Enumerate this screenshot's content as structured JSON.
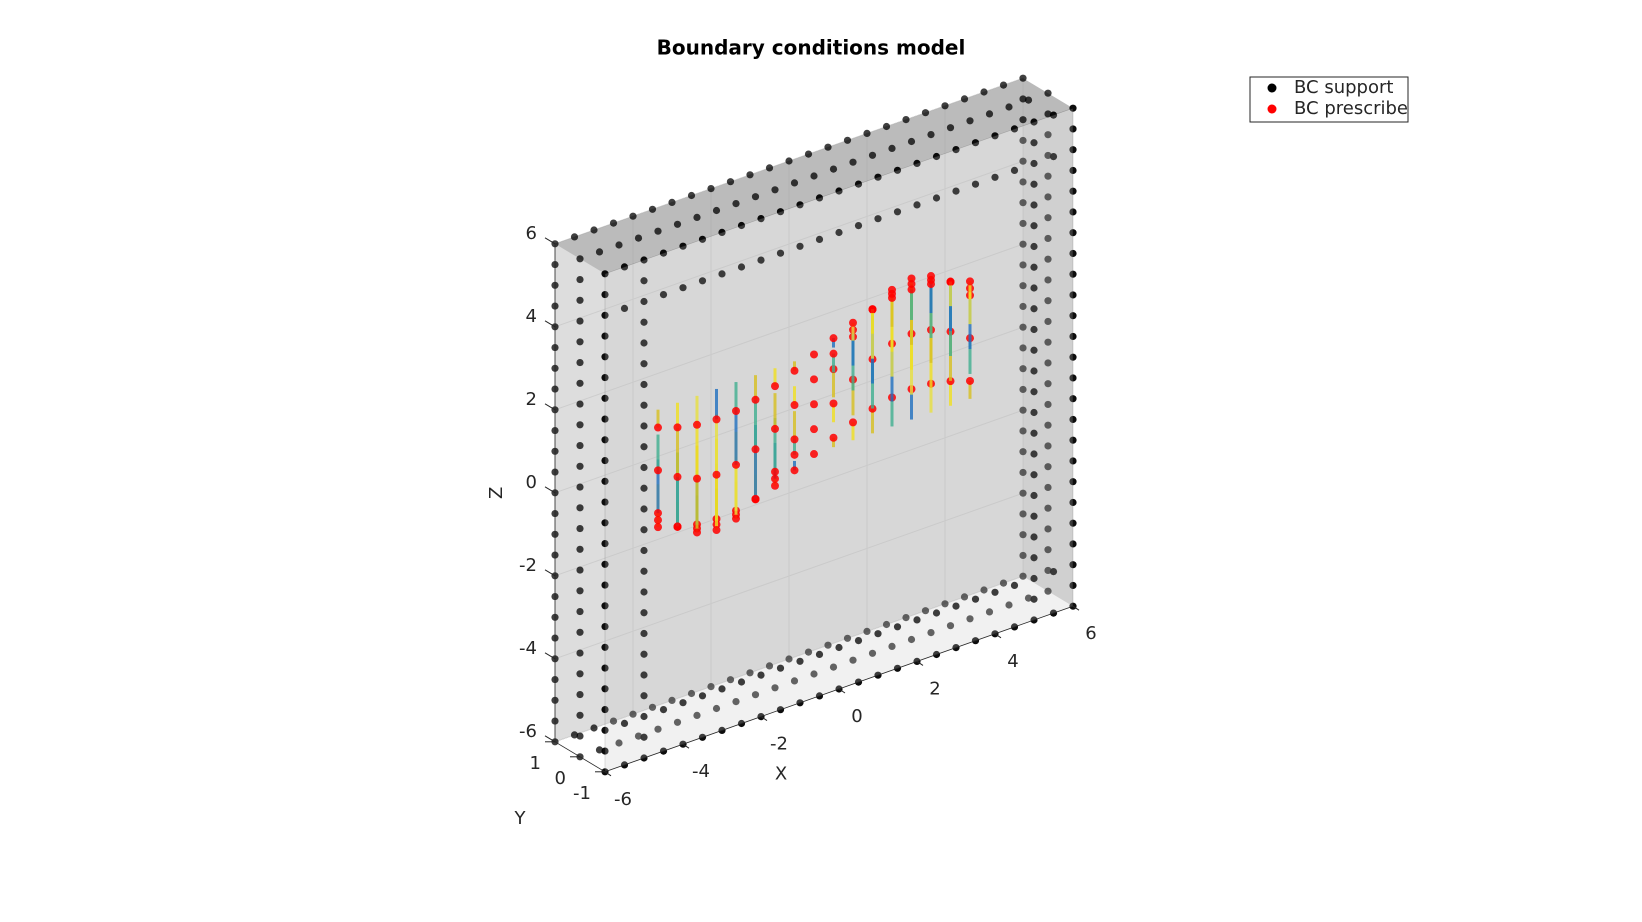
{
  "chart_data": {
    "type": "scatter3",
    "title": "Boundary conditions model",
    "xlabel": "X",
    "ylabel": "Y",
    "zlabel": "Z",
    "xlim": [
      -6,
      6
    ],
    "xticks": [
      -6,
      -4,
      -2,
      0,
      2,
      4,
      6
    ],
    "ylim": [
      -1,
      1
    ],
    "yticks": [
      -1,
      0,
      1
    ],
    "zlim": [
      -6,
      6
    ],
    "zticks": [
      -6,
      -4,
      -2,
      0,
      2,
      4,
      6
    ],
    "grid": true,
    "legend": "northeast",
    "series": [
      {
        "name": "BC support",
        "color": "#000000"
      },
      {
        "name": "BC prescribe",
        "color": "#ff0000"
      }
    ]
  }
}
